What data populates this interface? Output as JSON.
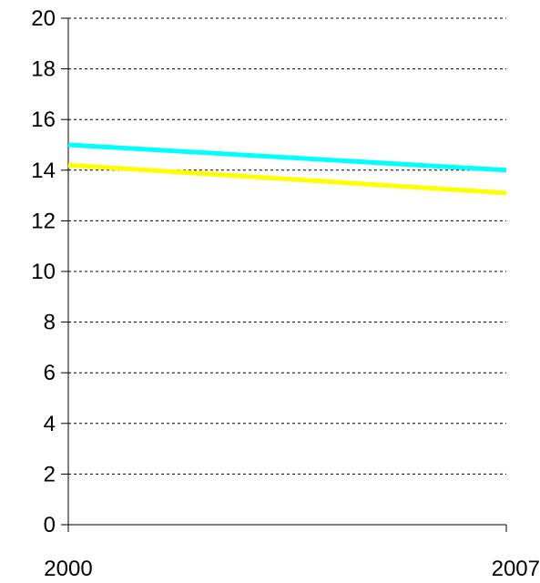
{
  "chart_data": {
    "type": "line",
    "title": "",
    "xlabel": "",
    "ylabel": "",
    "x": [
      "2000",
      "2007"
    ],
    "ylim": [
      0,
      20
    ],
    "yticks": [
      "0",
      "2",
      "4",
      "6",
      "8",
      "10",
      "12",
      "14",
      "16",
      "18",
      "20"
    ],
    "grid": true,
    "legend": "none",
    "series": [
      {
        "color": "#00FFFF",
        "values": [
          15.0,
          14.0
        ]
      },
      {
        "color": "#FFFF00",
        "values": [
          14.2,
          13.1
        ]
      }
    ]
  }
}
